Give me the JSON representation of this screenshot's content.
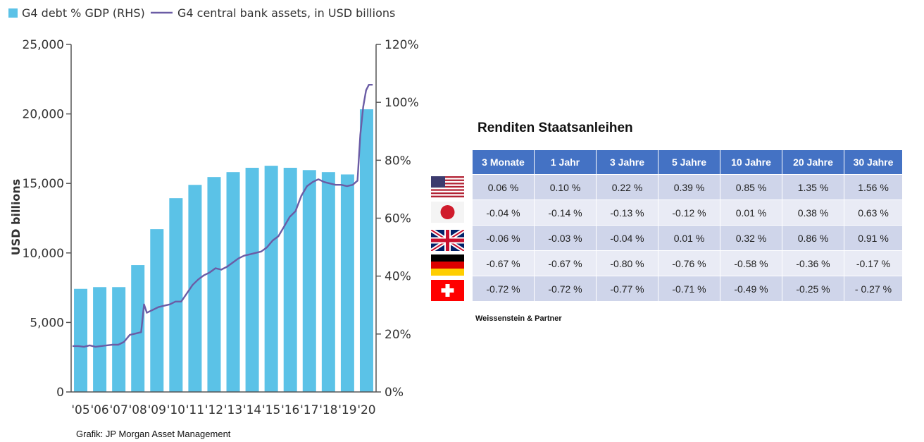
{
  "chart_data": {
    "type": "bar+line",
    "legend": [
      {
        "label": "G4 debt % GDP (RHS)",
        "color": "#5BC2E7",
        "kind": "bar"
      },
      {
        "label": "G4 central bank assets, in USD billions",
        "color": "#6B5CA5",
        "kind": "line"
      }
    ],
    "categories": [
      "'05",
      "'06",
      "'07",
      "'08",
      "'09",
      "'10",
      "'11",
      "'12",
      "'13",
      "'14",
      "'15",
      "'16",
      "'17",
      "'18",
      "'19",
      "'20"
    ],
    "series": [
      {
        "name": "G4 debt % GDP (RHS)",
        "axis": "right",
        "values": [
          35.6,
          36.2,
          36.2,
          43.8,
          56.2,
          66.9,
          71.5,
          74.2,
          75.9,
          77.4,
          78.1,
          77.4,
          76.6,
          75.9,
          75.1,
          97.6
        ]
      },
      {
        "name": "G4 central bank assets, in USD billions",
        "axis": "left",
        "x": [
          2005.0,
          2005.3,
          2005.6,
          2005.9,
          2006.2,
          2006.5,
          2006.8,
          2007.1,
          2007.4,
          2007.7,
          2008.0,
          2008.3,
          2008.6,
          2008.75,
          2008.9,
          2009.2,
          2009.5,
          2009.8,
          2010.1,
          2010.4,
          2010.7,
          2011.0,
          2011.3,
          2011.6,
          2011.9,
          2012.2,
          2012.5,
          2012.8,
          2013.1,
          2013.4,
          2013.7,
          2014.0,
          2014.3,
          2014.6,
          2014.9,
          2015.2,
          2015.5,
          2015.8,
          2016.1,
          2016.4,
          2016.7,
          2017.0,
          2017.3,
          2017.6,
          2017.9,
          2018.2,
          2018.5,
          2018.8,
          2019.1,
          2019.4,
          2019.7,
          2019.95,
          2020.1,
          2020.25,
          2020.4,
          2020.55,
          2020.75
        ],
        "y": [
          3300,
          3300,
          3250,
          3350,
          3250,
          3300,
          3350,
          3400,
          3400,
          3600,
          4100,
          4200,
          4300,
          6300,
          5700,
          5900,
          6100,
          6200,
          6300,
          6500,
          6500,
          7100,
          7700,
          8100,
          8400,
          8600,
          8900,
          8800,
          9000,
          9300,
          9600,
          9800,
          9900,
          10000,
          10100,
          10400,
          10900,
          11200,
          11900,
          12600,
          13000,
          14100,
          14800,
          15100,
          15300,
          15100,
          15000,
          14900,
          14900,
          14800,
          14900,
          15200,
          18500,
          20500,
          21700,
          22100,
          22100
        ]
      }
    ],
    "y_left": {
      "label": "USD billions",
      "range": [
        0,
        25000
      ],
      "ticks": [
        "0",
        "5,000",
        "10,000",
        "15,000",
        "20,000",
        "25,000"
      ]
    },
    "y_right": {
      "range": [
        0,
        120
      ],
      "ticks": [
        "0%",
        "20%",
        "40%",
        "60%",
        "80%",
        "100%",
        "120%"
      ]
    },
    "source": "Grafik: JP Morgan Asset Management"
  },
  "yields": {
    "title": "Renditen Staatsanleihen",
    "columns": [
      "3 Monate",
      "1 Jahr",
      "3 Jahre",
      "5 Jahre",
      "10 Jahre",
      "20 Jahre",
      "30 Jahre"
    ],
    "rows": [
      {
        "flag_icon": "us-flag-icon",
        "values": [
          "0.06 %",
          "0.10 %",
          "0.22 %",
          "0.39 %",
          "0.85 %",
          "1.35 %",
          "1.56 %"
        ]
      },
      {
        "flag_icon": "japan-flag-icon",
        "values": [
          "-0.04 %",
          "-0.14 %",
          "-0.13 %",
          "-0.12 %",
          "0.01 %",
          "0.38 %",
          "0.63 %"
        ]
      },
      {
        "flag_icon": "uk-flag-icon",
        "values": [
          "-0.06 %",
          "-0.03 %",
          "-0.04 %",
          "0.01 %",
          "0.32 %",
          "0.86 %",
          "0.91 %"
        ]
      },
      {
        "flag_icon": "germany-flag-icon",
        "values": [
          "-0.67 %",
          "-0.67 %",
          "-0.80 %",
          "-0.76 %",
          "-0.58 %",
          "-0.36 %",
          "-0.17 %"
        ]
      },
      {
        "flag_icon": "switzerland-flag-icon",
        "values": [
          "-0.72 %",
          "-0.72 %",
          "-0.77 %",
          "-0.71 %",
          "-0.49 %",
          "-0.25 %",
          "- 0.27 %"
        ]
      }
    ],
    "credit": "Weissenstein & Partner"
  }
}
